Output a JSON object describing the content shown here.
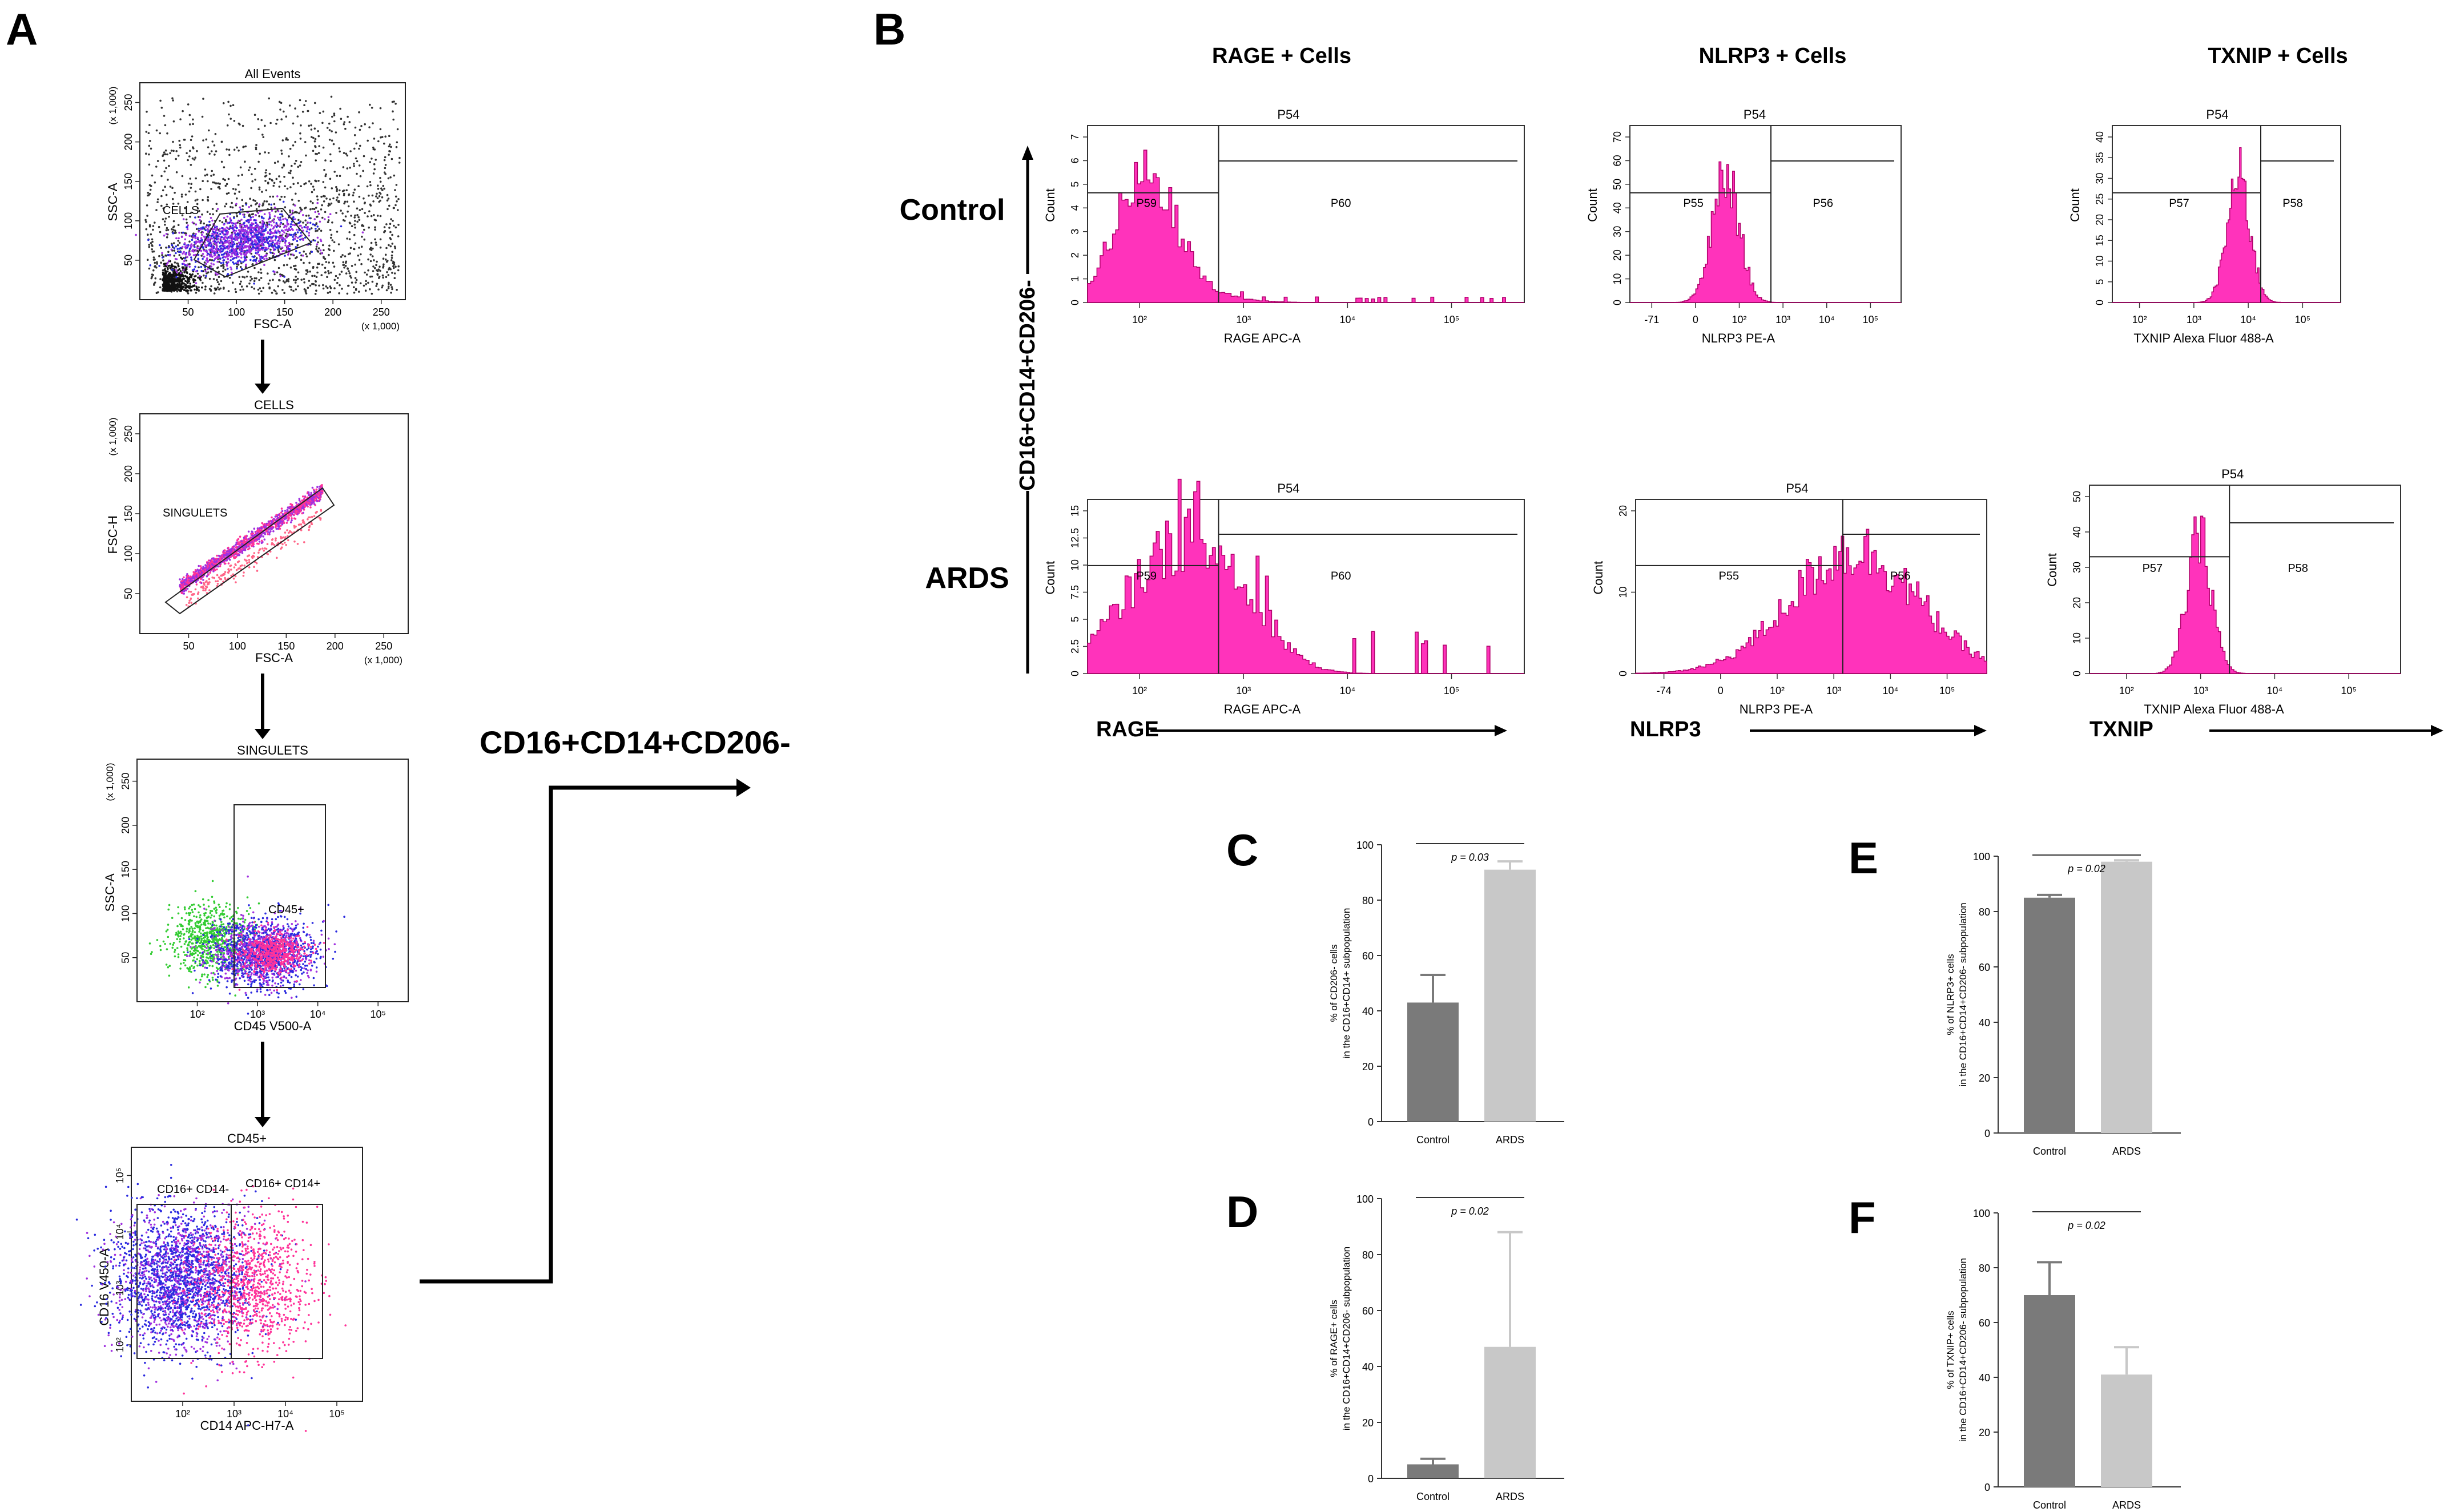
{
  "panel_letters": [
    "A",
    "B",
    "C",
    "D",
    "E",
    "F"
  ],
  "arrow_label": "CD16+CD14+CD206-",
  "panel_a": {
    "plots": [
      {
        "title": "All Events",
        "xlabel": "FSC-A",
        "ylabel": "SSC-A",
        "gate": "CELLS",
        "xticks": [
          "50",
          "100",
          "150",
          "200",
          "250"
        ],
        "yticks": [
          "50",
          "100",
          "150",
          "200",
          "250"
        ],
        "x_unit": "(x 1,000)",
        "y_unit": "(x 1,000)"
      },
      {
        "title": "CELLS",
        "xlabel": "FSC-A",
        "ylabel": "FSC-H",
        "gate": "SINGULETS",
        "xticks": [
          "50",
          "100",
          "150",
          "200",
          "250"
        ],
        "yticks": [
          "50",
          "100",
          "150",
          "200",
          "250"
        ],
        "x_unit": "(x 1,000)",
        "y_unit": "(x 1,000)"
      },
      {
        "title": "SINGULETS",
        "xlabel": "CD45 V500-A",
        "ylabel": "SSC-A",
        "gate": "CD45+",
        "xticks": [
          "10²",
          "10³",
          "10⁴",
          "10⁵"
        ],
        "yticks": [
          "50",
          "100",
          "150",
          "200",
          "250"
        ],
        "y_unit": "(x 1,000)"
      },
      {
        "title": "CD45+",
        "xlabel": "CD14 APC-H7-A",
        "ylabel": "CD16 V450-A",
        "gates": [
          "CD16+ CD14-",
          "CD16+ CD14+"
        ],
        "xticks": [
          "10²",
          "10³",
          "10⁴",
          "10⁵"
        ],
        "yticks": [
          "10²",
          "10³",
          "10⁴",
          "10⁵"
        ]
      }
    ]
  },
  "panel_b": {
    "col_headers": [
      "RAGE + Cells",
      "NLRP3 + Cells",
      "TXNIP + Cells"
    ],
    "row_labels": [
      "Control",
      "ARDS"
    ],
    "side_label": "CD16+CD14+CD206-",
    "ylabel": "Count",
    "parent_gate": "P54",
    "bottom_labels": [
      "RAGE",
      "NLRP3",
      "TXNIP"
    ],
    "hist": [
      {
        "xlabel": "RAGE APC-A",
        "gates": [
          "P59",
          "P60"
        ],
        "yticks": [
          "0",
          "1",
          "2",
          "3",
          "4",
          "5",
          "6",
          "7"
        ],
        "xticks": [
          "10²",
          "10³",
          "10⁴",
          "10⁵"
        ]
      },
      {
        "xlabel": "NLRP3 PE-A",
        "gates": [
          "P55",
          "P56"
        ],
        "yticks": [
          "0",
          "10",
          "20",
          "30",
          "40",
          "50",
          "60",
          "70"
        ],
        "xticks": [
          "-71",
          "0",
          "10²",
          "10³",
          "10⁴",
          "10⁵"
        ]
      },
      {
        "xlabel": "TXNIP Alexa Fluor 488-A",
        "gates": [
          "P57",
          "P58"
        ],
        "yticks": [
          "0",
          "5",
          "10",
          "15",
          "20",
          "25",
          "30",
          "35",
          "40"
        ],
        "xticks": [
          "10²",
          "10³",
          "10⁴",
          "10⁵"
        ]
      },
      {
        "xlabel": "RAGE APC-A",
        "gates": [
          "P59",
          "P60"
        ],
        "yticks": [
          "0",
          "2.5",
          "5",
          "7.5",
          "10",
          "12.5",
          "15"
        ],
        "xticks": [
          "10²",
          "10³",
          "10⁴",
          "10⁵"
        ]
      },
      {
        "xlabel": "NLRP3 PE-A",
        "gates": [
          "P55",
          "P56"
        ],
        "yticks": [
          "0",
          "10",
          "20"
        ],
        "xticks": [
          "-74",
          "0",
          "10²",
          "10³",
          "10⁴",
          "10⁵"
        ]
      },
      {
        "xlabel": "TXNIP Alexa Fluor 488-A",
        "gates": [
          "P57",
          "P58"
        ],
        "yticks": [
          "0",
          "10",
          "20",
          "30",
          "40",
          "50"
        ],
        "xticks": [
          "10²",
          "10³",
          "10⁴",
          "10⁵"
        ]
      }
    ]
  },
  "colors": {
    "control_bar": "#7a7a7a",
    "ards_bar": "#c8c8c8",
    "histogram": "#ff33bb",
    "hist_edge": "#b0006a",
    "scatter_blue": "#2a2adf",
    "scatter_purple": "#a030e0",
    "scatter_magenta": "#ff3399",
    "scatter_green": "#33cc33"
  },
  "chart_data": [
    {
      "panel": "C",
      "type": "bar",
      "categories": [
        "Control",
        "ARDS"
      ],
      "values": [
        43,
        91
      ],
      "errors": [
        10,
        3
      ],
      "ylim": [
        0,
        100
      ],
      "yticks": [
        "0",
        "20",
        "40",
        "60",
        "80",
        "100"
      ],
      "ylabel": "% of CD206- cells in the CD16+CD14+ subpopulation",
      "pvalue": "p = 0.03"
    },
    {
      "panel": "D",
      "type": "bar",
      "categories": [
        "Control",
        "ARDS"
      ],
      "values": [
        5,
        47
      ],
      "errors": [
        2,
        41
      ],
      "ylim": [
        0,
        100
      ],
      "yticks": [
        "0",
        "20",
        "40",
        "60",
        "80",
        "100"
      ],
      "ylabel": "% of RAGE+ cells in the CD16+CD14+CD206- subpopulation",
      "pvalue": "p = 0.02"
    },
    {
      "panel": "E",
      "type": "bar",
      "categories": [
        "Control",
        "ARDS"
      ],
      "values": [
        85,
        98
      ],
      "errors": [
        1,
        0.5
      ],
      "ylim": [
        0,
        100
      ],
      "yticks": [
        "0",
        "20",
        "40",
        "60",
        "80",
        "100"
      ],
      "ylabel": "% of NLRP3+ cells in the CD16+CD14+CD206- subpopulation",
      "pvalue": "p = 0.02"
    },
    {
      "panel": "F",
      "type": "bar",
      "categories": [
        "Control",
        "ARDS"
      ],
      "values": [
        70,
        41
      ],
      "errors": [
        12,
        10
      ],
      "ylim": [
        0,
        100
      ],
      "yticks": [
        "0",
        "20",
        "40",
        "60",
        "80",
        "100"
      ],
      "ylabel": "% of TXNIP+ cells in the CD16+CD14+CD206- subpopulation",
      "pvalue": "p = 0.02"
    }
  ]
}
